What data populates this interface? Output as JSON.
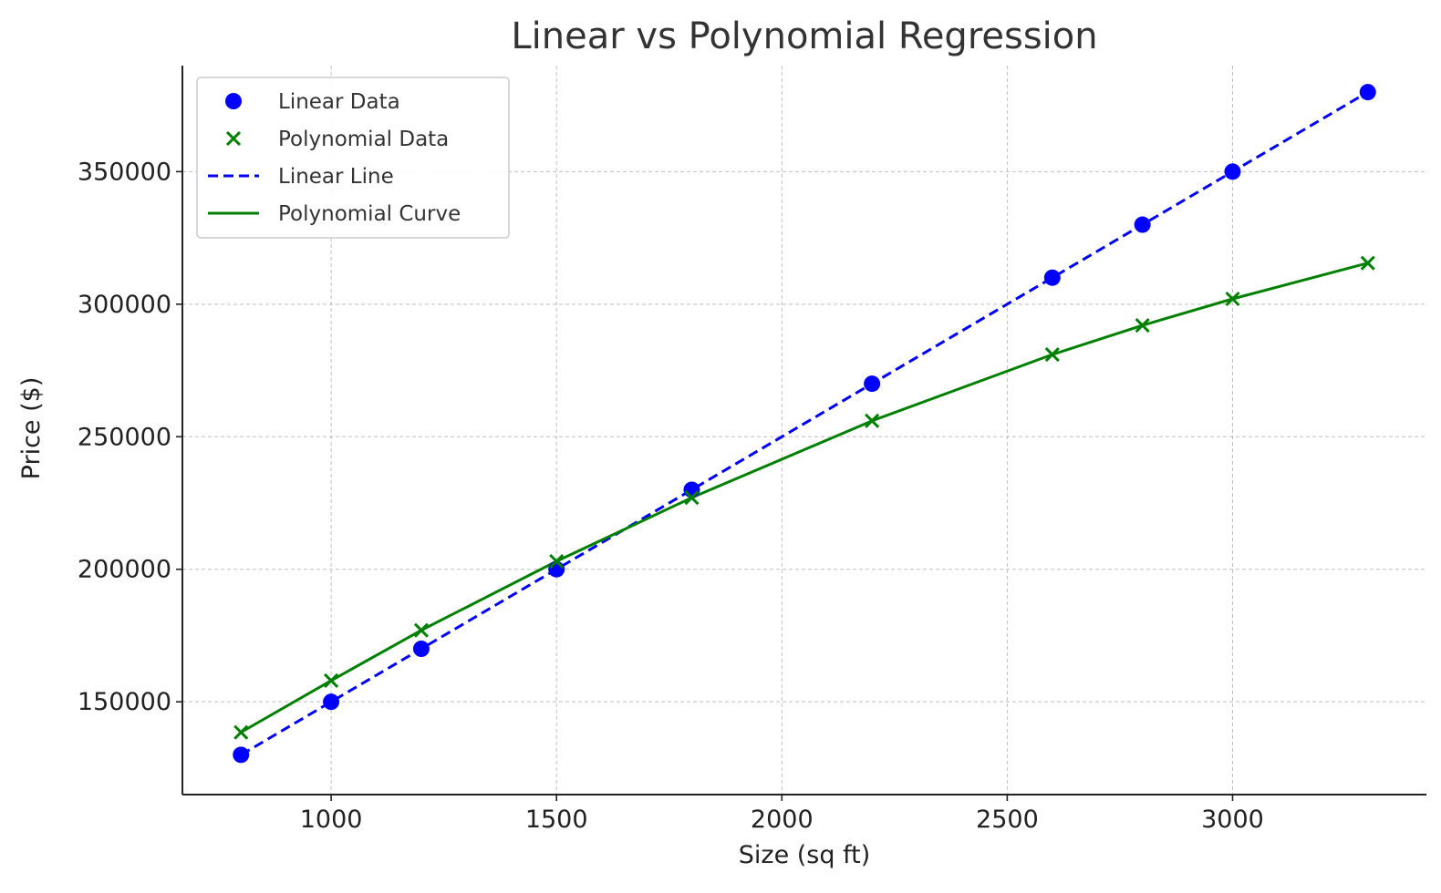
{
  "chart_data": {
    "type": "scatter",
    "title": "Linear vs Polynomial Regression",
    "xlabel": "Size (sq ft)",
    "ylabel": "Price ($)",
    "xlim": [
      670,
      3430
    ],
    "ylim": [
      115000,
      390000
    ],
    "xticks": [
      1000,
      1500,
      2000,
      2500,
      3000
    ],
    "yticks": [
      150000,
      200000,
      250000,
      300000,
      350000
    ],
    "grid": true,
    "legend_position": "top-left",
    "colors": {
      "linear": "#0000ff",
      "polynomial": "#008000"
    },
    "series": [
      {
        "name": "Linear Data",
        "kind": "scatter",
        "marker": "circle",
        "color": "#0000ff",
        "x": [
          800,
          1000,
          1200,
          1500,
          1800,
          2200,
          2600,
          2800,
          3000,
          3300
        ],
        "y": [
          130000,
          150000,
          170000,
          200000,
          230000,
          270000,
          310000,
          330000,
          350000,
          380000
        ]
      },
      {
        "name": "Polynomial Data",
        "kind": "scatter",
        "marker": "x",
        "color": "#008000",
        "x": [
          800,
          1000,
          1200,
          1500,
          1800,
          2200,
          2600,
          2800,
          3000,
          3300
        ],
        "y": [
          138500,
          158000,
          177000,
          203000,
          227000,
          256000,
          281000,
          292000,
          302000,
          315500
        ]
      },
      {
        "name": "Linear Line",
        "kind": "line",
        "style": "dashed",
        "color": "#0000ff",
        "x": [
          800,
          1000,
          1200,
          1500,
          1800,
          2200,
          2600,
          2800,
          3000,
          3300
        ],
        "y": [
          130000,
          150000,
          170000,
          200000,
          230000,
          270000,
          310000,
          330000,
          350000,
          380000
        ]
      },
      {
        "name": "Polynomial Curve",
        "kind": "line",
        "style": "solid",
        "color": "#008000",
        "x": [
          800,
          1000,
          1200,
          1500,
          1800,
          2200,
          2600,
          2800,
          3000,
          3300
        ],
        "y": [
          138500,
          158000,
          177000,
          203000,
          227000,
          256000,
          281000,
          292000,
          302000,
          315500
        ]
      }
    ]
  }
}
